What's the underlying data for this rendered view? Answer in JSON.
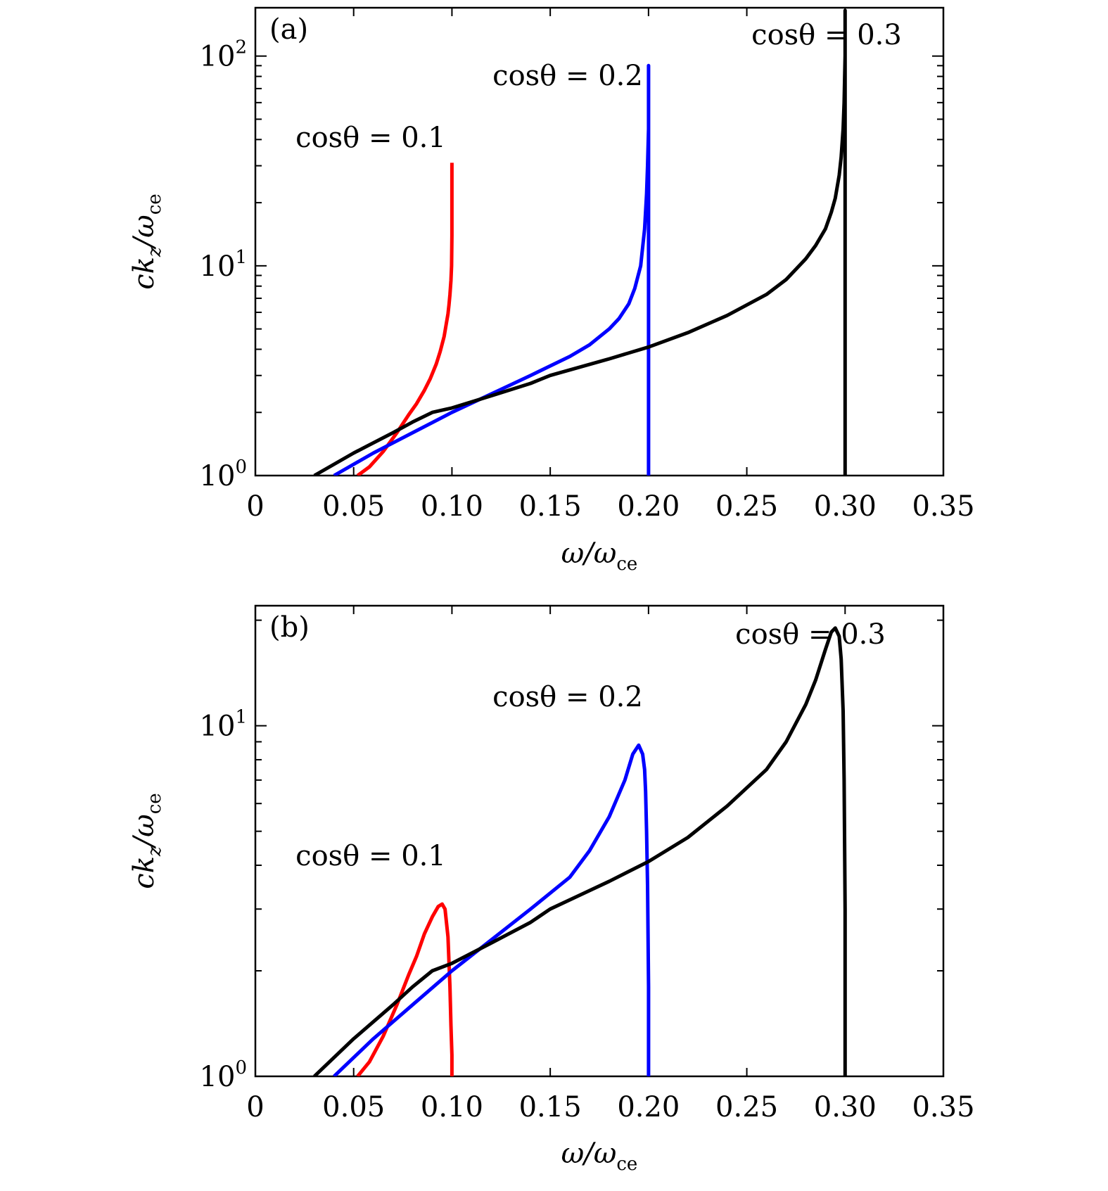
{
  "colors": {
    "red": "#ff0000",
    "blue": "#0000ff",
    "black": "#000000"
  },
  "chart_data": [
    {
      "panel": "(a)",
      "type": "line",
      "xlabel": "ω/ωce",
      "xlabel_main": "ω/ω",
      "xlabel_sub": "ce",
      "ylabel": "ckz/ωce",
      "ylabel_parts": [
        "ck",
        "z",
        "/ω",
        "ce"
      ],
      "xlim": [
        0,
        0.35
      ],
      "ylim": [
        1,
        170
      ],
      "yscale": "log",
      "xticks": [
        0,
        0.05,
        0.1,
        0.15,
        0.2,
        0.25,
        0.3,
        0.35
      ],
      "xtick_labels": [
        "0",
        "0.05",
        "0.10",
        "0.15",
        "0.20",
        "0.25",
        "0.30",
        "0.35"
      ],
      "yticks": [
        1,
        10,
        100
      ],
      "ytick_labels": [
        {
          "base": "10",
          "exp": "0"
        },
        {
          "base": "10",
          "exp": "1"
        },
        {
          "base": "10",
          "exp": "2"
        }
      ],
      "grid": false,
      "series": [
        {
          "name": "cosθ = 0.1",
          "color": "#ff0000",
          "x": [
            0.052,
            0.058,
            0.065,
            0.072,
            0.078,
            0.082,
            0.086,
            0.089,
            0.092,
            0.094,
            0.096,
            0.097,
            0.098,
            0.0985,
            0.099,
            0.0995,
            0.0998,
            0.1,
            0.1,
            0.1
          ],
          "y": [
            1.0,
            1.1,
            1.3,
            1.6,
            1.95,
            2.2,
            2.55,
            2.9,
            3.4,
            3.9,
            4.6,
            5.2,
            5.9,
            6.5,
            7.3,
            8.5,
            10,
            14,
            22,
            31
          ]
        },
        {
          "name": "cosθ = 0.2",
          "color": "#0000ff",
          "x": [
            0.04,
            0.06,
            0.08,
            0.1,
            0.12,
            0.14,
            0.16,
            0.17,
            0.18,
            0.185,
            0.19,
            0.193,
            0.196,
            0.198,
            0.199,
            0.1995,
            0.2,
            0.2,
            0.2,
            0.2
          ],
          "y": [
            1.0,
            1.28,
            1.6,
            2.0,
            2.45,
            3.0,
            3.7,
            4.2,
            5.0,
            5.6,
            6.6,
            7.8,
            10,
            15,
            22,
            30,
            45,
            70,
            90,
            1.0
          ]
        },
        {
          "name": "cosθ = 0.3",
          "color": "#000000",
          "x": [
            0.03,
            0.05,
            0.07,
            0.08,
            0.09,
            0.1,
            0.12,
            0.14,
            0.15,
            0.18,
            0.2,
            0.22,
            0.24,
            0.26,
            0.27,
            0.28,
            0.285,
            0.29,
            0.293,
            0.295,
            0.297,
            0.298,
            0.299,
            0.2995,
            0.3,
            0.3,
            0.3
          ],
          "y": [
            1.0,
            1.28,
            1.6,
            1.8,
            2.0,
            2.1,
            2.4,
            2.75,
            3.0,
            3.6,
            4.1,
            4.8,
            5.8,
            7.3,
            8.6,
            10.8,
            12.5,
            15,
            18,
            21,
            27,
            33,
            45,
            60,
            100,
            165,
            1.0
          ]
        }
      ],
      "annotations": [
        {
          "text": "cosθ = 0.1",
          "color": "#ff0000"
        },
        {
          "text": "cosθ = 0.2",
          "color": "#0000ff"
        },
        {
          "text": "cosθ = 0.3",
          "color": "#000000"
        }
      ]
    },
    {
      "panel": "(b)",
      "type": "line",
      "xlabel": "ω/ωce",
      "xlabel_main": "ω/ω",
      "xlabel_sub": "ce",
      "ylabel": "ckz/ωce",
      "ylabel_parts": [
        "ck",
        "z",
        "/ω",
        "ce"
      ],
      "xlim": [
        0,
        0.35
      ],
      "ylim": [
        1,
        22
      ],
      "yscale": "log",
      "xticks": [
        0,
        0.05,
        0.1,
        0.15,
        0.2,
        0.25,
        0.3,
        0.35
      ],
      "xtick_labels": [
        "0",
        "0.05",
        "0.10",
        "0.15",
        "0.20",
        "0.25",
        "0.30",
        "0.35"
      ],
      "yticks": [
        1,
        10
      ],
      "ytick_labels": [
        {
          "base": "10",
          "exp": "0"
        },
        {
          "base": "10",
          "exp": "1"
        }
      ],
      "grid": false,
      "series": [
        {
          "name": "cosθ = 0.1",
          "color": "#ff0000",
          "x": [
            0.052,
            0.058,
            0.065,
            0.072,
            0.078,
            0.082,
            0.086,
            0.09,
            0.093,
            0.095,
            0.0965,
            0.098,
            0.099,
            0.0995,
            0.1,
            0.1
          ],
          "y": [
            1.0,
            1.1,
            1.3,
            1.6,
            1.95,
            2.2,
            2.55,
            2.85,
            3.05,
            3.1,
            3.0,
            2.5,
            1.8,
            1.4,
            1.15,
            1.0
          ]
        },
        {
          "name": "cosθ = 0.2",
          "color": "#0000ff",
          "x": [
            0.04,
            0.06,
            0.08,
            0.1,
            0.12,
            0.14,
            0.16,
            0.17,
            0.18,
            0.188,
            0.192,
            0.195,
            0.197,
            0.198,
            0.1985,
            0.199,
            0.1995,
            0.2,
            0.2
          ],
          "y": [
            1.0,
            1.28,
            1.6,
            2.0,
            2.45,
            3.0,
            3.7,
            4.4,
            5.5,
            7.0,
            8.3,
            8.8,
            8.3,
            7.5,
            6.5,
            5.0,
            3.5,
            1.8,
            1.0
          ]
        },
        {
          "name": "cosθ = 0.3",
          "color": "#000000",
          "x": [
            0.03,
            0.05,
            0.07,
            0.08,
            0.09,
            0.1,
            0.12,
            0.14,
            0.15,
            0.18,
            0.2,
            0.22,
            0.24,
            0.26,
            0.27,
            0.28,
            0.285,
            0.29,
            0.293,
            0.295,
            0.297,
            0.298,
            0.299,
            0.2995,
            0.3,
            0.3
          ],
          "y": [
            1.0,
            1.28,
            1.6,
            1.8,
            2.0,
            2.1,
            2.4,
            2.75,
            3.0,
            3.6,
            4.1,
            4.8,
            5.9,
            7.5,
            9.0,
            11.5,
            13.5,
            16.5,
            18.5,
            19.0,
            18.0,
            15.5,
            11.0,
            7.0,
            3.0,
            1.0
          ]
        }
      ],
      "annotations": [
        {
          "text": "cosθ = 0.1",
          "color": "#ff0000"
        },
        {
          "text": "cosθ = 0.2",
          "color": "#0000ff"
        },
        {
          "text": "cosθ = 0.3",
          "color": "#000000"
        }
      ]
    }
  ]
}
